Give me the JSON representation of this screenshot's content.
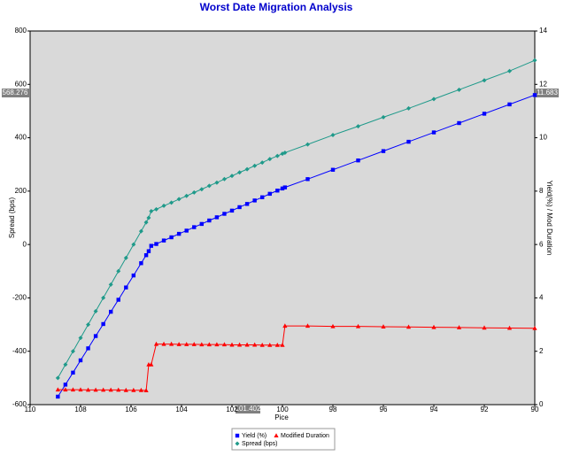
{
  "chart_data": {
    "type": "line",
    "title": "Worst Date Migration Analysis",
    "x_label": "Pice",
    "y_label": "Spread (bps)",
    "y2_label": "Yield(%) / Mod Duration",
    "annotations": [
      "568.276",
      "11.683",
      "101.402"
    ],
    "xlim": [
      110,
      90
    ],
    "xticks": [
      110,
      108,
      106,
      104,
      102,
      100,
      98,
      96,
      94,
      92,
      90
    ],
    "ylim": [
      -600,
      800
    ],
    "yticks": [
      -600,
      -400,
      -200,
      0,
      200,
      400,
      600,
      800
    ],
    "y2lim": [
      0,
      14
    ],
    "y2ticks": [
      0,
      2,
      4,
      6,
      8,
      10,
      12,
      14
    ],
    "grid": false,
    "legend": "bottom",
    "x": [
      108.9,
      108.6,
      108.3,
      108.0,
      107.7,
      107.4,
      107.1,
      106.8,
      106.5,
      106.2,
      105.9,
      105.6,
      105.4,
      105.3,
      105.2,
      105.0,
      104.7,
      104.4,
      104.1,
      103.8,
      103.5,
      103.2,
      102.9,
      102.6,
      102.3,
      102.0,
      101.7,
      101.4,
      101.1,
      100.8,
      100.5,
      100.2,
      100.0,
      99.9,
      99,
      98,
      97,
      96,
      95,
      94,
      93,
      92,
      91,
      90
    ],
    "series": [
      {
        "name": "Yield (%)",
        "color": "#0000ff",
        "marker": "square",
        "axis": "y2",
        "values": [
          0.3,
          0.75,
          1.2,
          1.66,
          2.11,
          2.57,
          3.02,
          3.48,
          3.93,
          4.39,
          4.84,
          5.3,
          5.6,
          5.75,
          5.95,
          6.02,
          6.15,
          6.27,
          6.4,
          6.52,
          6.65,
          6.77,
          6.9,
          7.02,
          7.15,
          7.27,
          7.4,
          7.52,
          7.65,
          7.77,
          7.9,
          8.02,
          8.1,
          8.14,
          8.45,
          8.8,
          9.15,
          9.5,
          9.85,
          10.2,
          10.55,
          10.9,
          11.25,
          11.6
        ]
      },
      {
        "name": "Modified Duration",
        "color": "#ff0000",
        "marker": "triangle",
        "axis": "y2",
        "values": [
          0.56,
          0.56,
          0.56,
          0.56,
          0.55,
          0.55,
          0.55,
          0.55,
          0.55,
          0.54,
          0.54,
          0.54,
          0.53,
          1.5,
          1.5,
          2.27,
          2.27,
          2.27,
          2.26,
          2.26,
          2.26,
          2.25,
          2.25,
          2.25,
          2.25,
          2.24,
          2.24,
          2.24,
          2.24,
          2.23,
          2.23,
          2.23,
          2.23,
          2.95,
          2.95,
          2.93,
          2.93,
          2.92,
          2.91,
          2.9,
          2.89,
          2.88,
          2.87,
          2.86
        ]
      },
      {
        "name": "Spread (bps)",
        "color": "#1f9a8a",
        "marker": "diamond",
        "values": [
          -500,
          -450,
          -400,
          -350,
          -300,
          -250,
          -200,
          -150,
          -100,
          -50,
          0,
          50,
          83,
          100,
          125,
          132,
          145,
          157,
          170,
          182,
          195,
          207,
          220,
          232,
          245,
          257,
          270,
          282,
          295,
          307,
          320,
          332,
          340,
          344,
          375,
          410,
          443,
          477,
          510,
          545,
          580,
          615,
          650,
          690
        ]
      }
    ]
  }
}
